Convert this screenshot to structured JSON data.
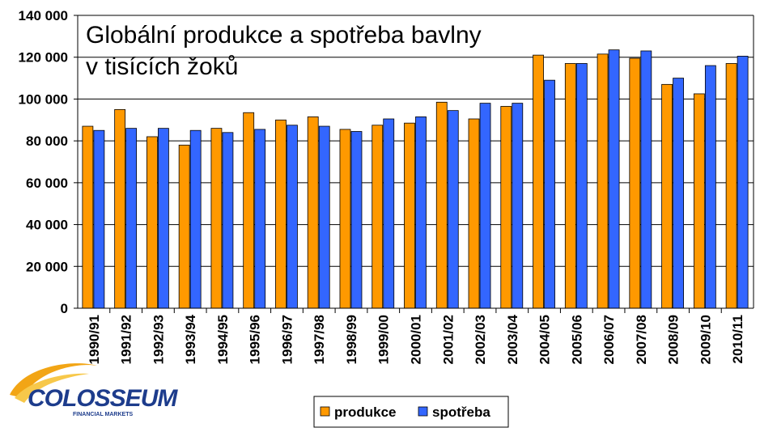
{
  "chart_data": {
    "type": "bar",
    "title": "Globální produkce a spotřeba bavlny",
    "subtitle": "v tisících žoků",
    "categories": [
      "1990/91",
      "1991/92",
      "1992/93",
      "1993/94",
      "1994/95",
      "1995/96",
      "1996/97",
      "1997/98",
      "1998/99",
      "1999/00",
      "2000/01",
      "2001/02",
      "2002/03",
      "2003/04",
      "2004/05",
      "2005/06",
      "2006/07",
      "2007/08",
      "2008/09",
      "2009/10",
      "2010/11"
    ],
    "series": [
      {
        "name": "produkce",
        "color": "#FF9900",
        "values": [
          87000,
          95000,
          82000,
          78000,
          86000,
          93500,
          90000,
          91500,
          85500,
          87500,
          88500,
          98500,
          90500,
          96500,
          121000,
          117000,
          121500,
          119500,
          107000,
          102500,
          117000
        ]
      },
      {
        "name": "spotřeba",
        "color": "#3366FF",
        "values": [
          85000,
          86000,
          86000,
          85000,
          84000,
          85500,
          87500,
          87000,
          84500,
          90500,
          91500,
          94500,
          98000,
          98000,
          109000,
          117000,
          123500,
          123000,
          110000,
          116000,
          120500
        ]
      }
    ],
    "ylim": [
      0,
      140000
    ],
    "yticks": [
      0,
      20000,
      40000,
      60000,
      80000,
      100000,
      120000,
      140000
    ],
    "ytick_labels": [
      "0",
      "20 000",
      "40 000",
      "60 000",
      "80 000",
      "100 000",
      "120 000",
      "140 000"
    ],
    "grid": true,
    "legend_position": "bottom"
  },
  "logo": {
    "name": "COLOSSEUM",
    "tagline": "FINANCIAL MARKETS"
  }
}
